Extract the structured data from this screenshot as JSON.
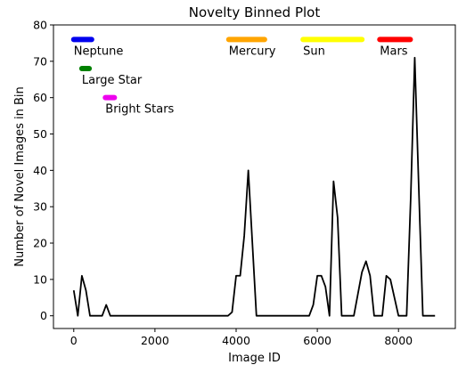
{
  "chart_data": {
    "type": "line",
    "title": "Novelty Binned Plot",
    "xlabel": "Image ID",
    "ylabel": "Number of Novel Images in Bin",
    "xlim": [
      -500,
      9400
    ],
    "ylim": [
      -3.5,
      80
    ],
    "xticks": [
      0,
      2000,
      4000,
      6000,
      8000
    ],
    "yticks": [
      0,
      10,
      20,
      30,
      40,
      50,
      60,
      70,
      80
    ],
    "grid": false,
    "line_color": "#000000",
    "series": [
      {
        "x": [
          0,
          100,
          200,
          300,
          400,
          500,
          600,
          700,
          800,
          900,
          1000,
          1100,
          1200,
          1300,
          1400,
          1500,
          1600,
          1700,
          1800,
          1900,
          2000,
          2100,
          2200,
          2300,
          2400,
          2500,
          2600,
          2700,
          2800,
          2900,
          3000,
          3100,
          3200,
          3300,
          3400,
          3500,
          3600,
          3700,
          3800,
          3900,
          4000,
          4100,
          4200,
          4300,
          4400,
          4500,
          4600,
          4700,
          4800,
          4900,
          5000,
          5100,
          5200,
          5300,
          5400,
          5500,
          5600,
          5700,
          5800,
          5900,
          6000,
          6100,
          6200,
          6300,
          6400,
          6500,
          6600,
          6700,
          6800,
          6900,
          7000,
          7100,
          7200,
          7300,
          7400,
          7500,
          7600,
          7700,
          7800,
          7900,
          8000,
          8100,
          8200,
          8300,
          8400,
          8500,
          8600,
          8700,
          8800,
          8900
        ],
        "values": [
          7,
          0,
          11,
          7,
          0,
          0,
          0,
          0,
          3,
          0,
          0,
          0,
          0,
          0,
          0,
          0,
          0,
          0,
          0,
          0,
          0,
          0,
          0,
          0,
          0,
          0,
          0,
          0,
          0,
          0,
          0,
          0,
          0,
          0,
          0,
          0,
          0,
          0,
          0,
          1,
          11,
          11,
          22,
          40,
          20,
          0,
          0,
          0,
          0,
          0,
          0,
          0,
          0,
          0,
          0,
          0,
          0,
          0,
          0,
          3,
          11,
          11,
          8,
          0,
          37,
          27,
          0,
          0,
          0,
          0,
          6,
          12,
          15,
          11,
          0,
          0,
          0,
          11,
          10,
          5,
          0,
          0,
          0,
          32,
          71,
          35,
          0,
          0,
          0,
          0
        ]
      }
    ],
    "annotations": [
      {
        "label": "Neptune",
        "color": "#0000ee",
        "x_start": 0,
        "x_end": 440,
        "y": 76
      },
      {
        "label": "Large Star",
        "color": "#008000",
        "x_start": 200,
        "x_end": 380,
        "y": 68
      },
      {
        "label": "Bright Stars",
        "color": "#ee00ee",
        "x_start": 780,
        "x_end": 1000,
        "y": 60
      },
      {
        "label": "Mercury",
        "color": "#ffa500",
        "x_start": 3820,
        "x_end": 4700,
        "y": 76
      },
      {
        "label": "Sun",
        "color": "#ffff00",
        "x_start": 5650,
        "x_end": 7100,
        "y": 76
      },
      {
        "label": "Mars",
        "color": "#ff0000",
        "x_start": 7540,
        "x_end": 8290,
        "y": 76
      }
    ]
  }
}
